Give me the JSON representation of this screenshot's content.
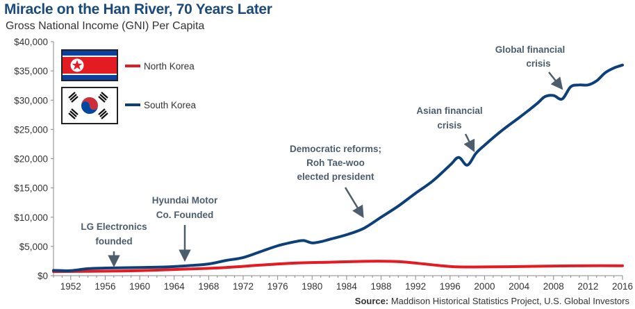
{
  "title": "Miracle on the Han River, 70 Years Later",
  "subtitle": "Gross National Income (GNI) Per Capita",
  "source": {
    "label": "Source:",
    "text": " Maddison Historical Statistics Project, U.S. Global Investors"
  },
  "colors": {
    "north": "#e31b23",
    "south": "#0d3f79",
    "title": "#1b4a7c",
    "annotation": "#4d5d6c",
    "axis": "#888888"
  },
  "chart_data": {
    "type": "line",
    "title": "Miracle on the Han River, 70 Years Later",
    "subtitle": "Gross National Income (GNI) Per Capita",
    "xlim": [
      1950,
      2016
    ],
    "ylim": [
      0,
      40000
    ],
    "x_ticks": [
      1952,
      1956,
      1960,
      1964,
      1968,
      1972,
      1976,
      1980,
      1984,
      1988,
      1992,
      1996,
      2000,
      2004,
      2008,
      2012,
      2016
    ],
    "y_ticks": [
      0,
      5000,
      10000,
      15000,
      20000,
      25000,
      30000,
      35000,
      40000
    ],
    "y_tick_labels": [
      "$0",
      "$5,000",
      "$10,000",
      "$15,000",
      "$20,000",
      "$25,000",
      "$30,000",
      "$35,000",
      "$40,000"
    ],
    "grid": false,
    "legend_position": "top-left",
    "series": [
      {
        "name": "North Korea",
        "color": "#e31b23",
        "x": [
          1950,
          1954,
          1958,
          1962,
          1966,
          1970,
          1974,
          1978,
          1982,
          1986,
          1989,
          1991,
          1993,
          1995,
          1997,
          2000,
          2004,
          2008,
          2012,
          2016
        ],
        "y": [
          700,
          750,
          800,
          950,
          1150,
          1400,
          1800,
          2150,
          2300,
          2450,
          2450,
          2300,
          2000,
          1700,
          1500,
          1500,
          1550,
          1650,
          1700,
          1700
        ]
      },
      {
        "name": "South Korea",
        "color": "#0d3f79",
        "x": [
          1950,
          1952,
          1954,
          1956,
          1958,
          1960,
          1962,
          1964,
          1966,
          1968,
          1970,
          1972,
          1974,
          1976,
          1978,
          1979,
          1980,
          1981,
          1982,
          1984,
          1986,
          1988,
          1990,
          1992,
          1994,
          1996,
          1997,
          1998,
          1999,
          2000,
          2002,
          2004,
          2006,
          2007,
          2008,
          2009,
          2010,
          2011,
          2012,
          2013,
          2014,
          2015,
          2016
        ],
        "y": [
          900,
          850,
          1200,
          1300,
          1350,
          1400,
          1450,
          1550,
          1750,
          2000,
          2600,
          3100,
          4100,
          5100,
          5800,
          6000,
          5600,
          5800,
          6200,
          7000,
          8100,
          10000,
          11900,
          14100,
          16200,
          18900,
          20200,
          18900,
          20900,
          22300,
          24800,
          27000,
          29300,
          30600,
          30800,
          30200,
          32300,
          32600,
          32600,
          33300,
          34700,
          35500,
          36000
        ]
      }
    ],
    "annotations": [
      {
        "lines": [
          "LG Electronics",
          "founded"
        ],
        "year": 1958
      },
      {
        "lines": [
          "Hyundai Motor",
          "Co. Founded"
        ],
        "year": 1967
      },
      {
        "lines": [
          "Democratic reforms;",
          "Roh Tae-woo",
          "elected president"
        ],
        "year": 1987
      },
      {
        "lines": [
          "Asian financial",
          "crisis"
        ],
        "year": 1998
      },
      {
        "lines": [
          "Global financial",
          "crisis"
        ],
        "year": 2009
      }
    ]
  },
  "legend": [
    {
      "label": "North Korea",
      "color": "#e31b23",
      "icon": "north-korea-flag-icon"
    },
    {
      "label": "South Korea",
      "color": "#0d3f79",
      "icon": "south-korea-flag-icon"
    }
  ]
}
